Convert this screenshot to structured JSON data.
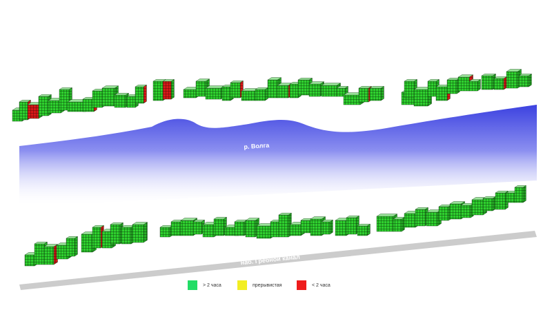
{
  "labels": {
    "river": "р. Волга",
    "embankment": "наб. Гребной канал"
  },
  "legend": [
    {
      "label": "> 2 часа",
      "color": "#22dd66"
    },
    {
      "label": "прерывистая",
      "color": "#f2ee22"
    },
    {
      "label": "< 2 часа",
      "color": "#ee1c1c"
    }
  ],
  "colors": {
    "facade_green": "#33cc33",
    "facade_red": "#e01818",
    "facade_yellow": "#e8e020",
    "roof_beige": "#e8c9a0",
    "roof_pink": "#e8a0c8",
    "river_top": "#3f45e0",
    "road_gray": "#cccccc"
  }
}
